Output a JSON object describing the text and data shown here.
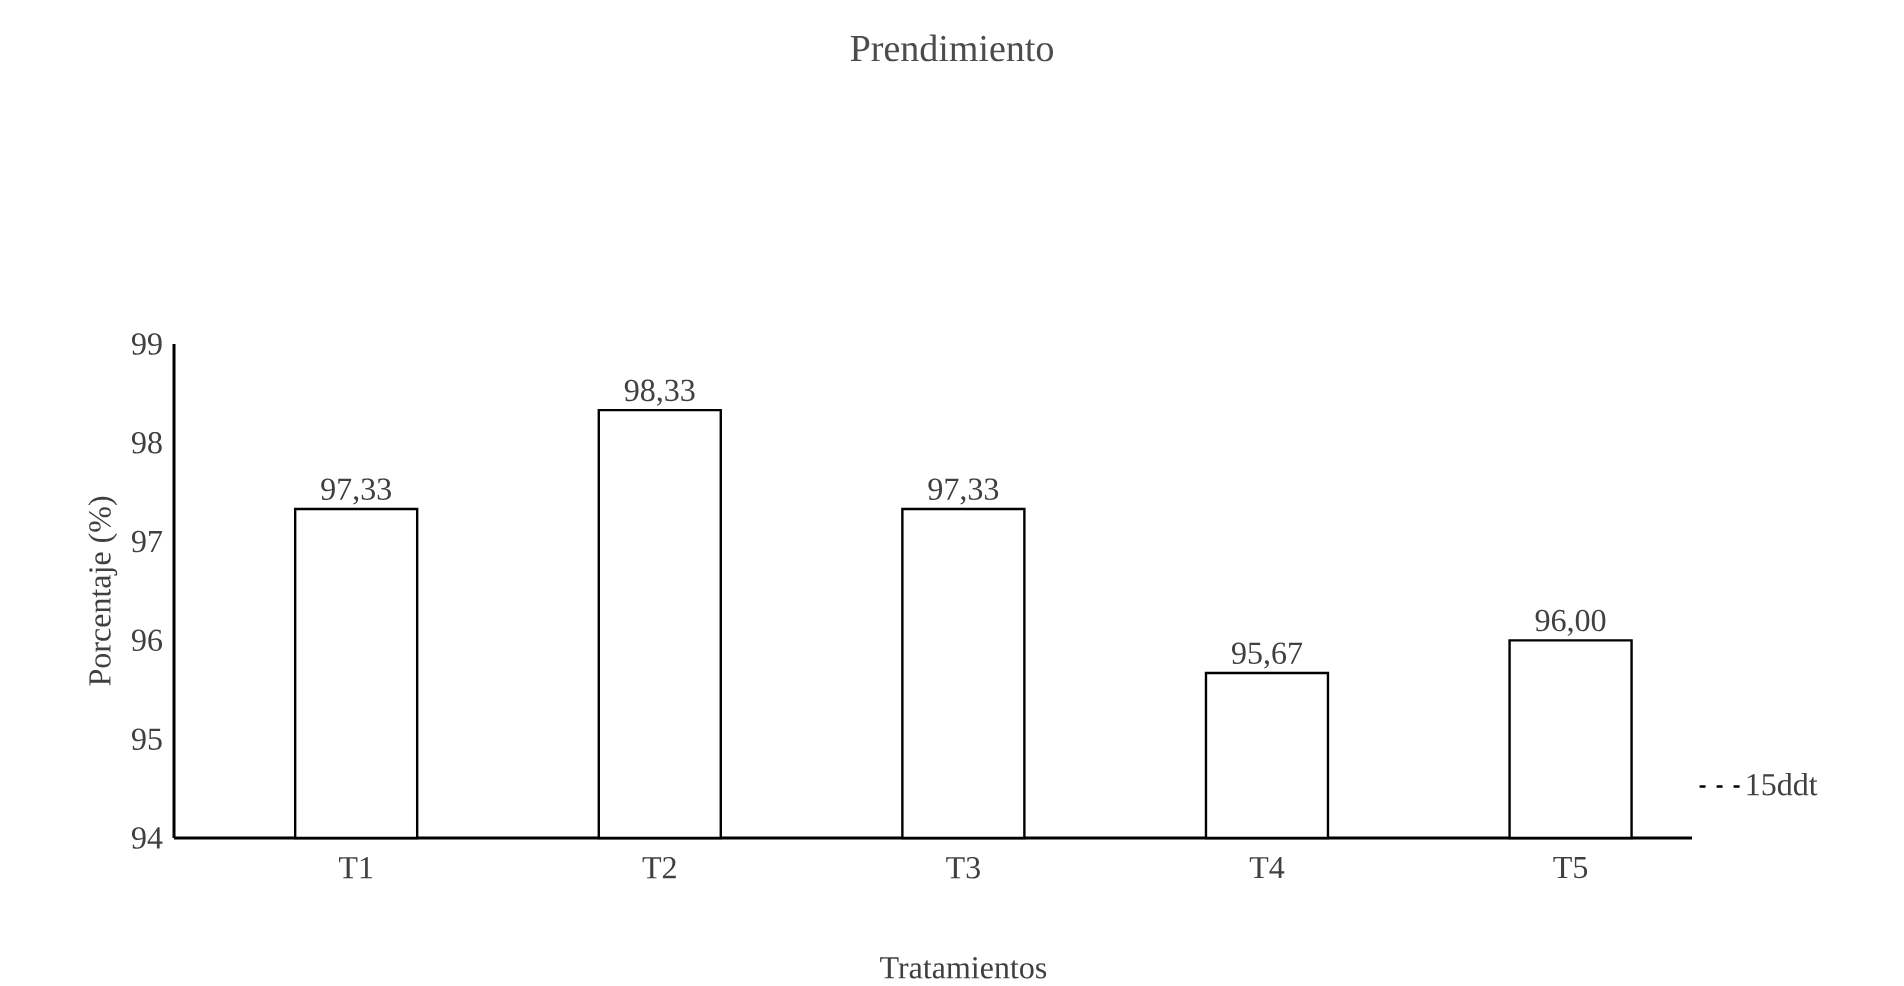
{
  "chart_data": {
    "type": "bar",
    "title": "Prendimiento",
    "xlabel": "Tratamientos",
    "ylabel": "Porcentaje (%)",
    "categories": [
      "T1",
      "T2",
      "T3",
      "T4",
      "T5"
    ],
    "series": [
      {
        "name": "15ddt",
        "color": "#ffffff",
        "values": [
          97.33,
          98.33,
          97.33,
          95.67,
          96.0
        ],
        "value_labels": [
          "97,33",
          "98,33",
          "97,33",
          "95,67",
          "96,00"
        ]
      }
    ],
    "ylim": [
      94,
      99
    ],
    "yticks": [
      94,
      95,
      96,
      97,
      98,
      99
    ],
    "grid": false,
    "legend": "right"
  }
}
